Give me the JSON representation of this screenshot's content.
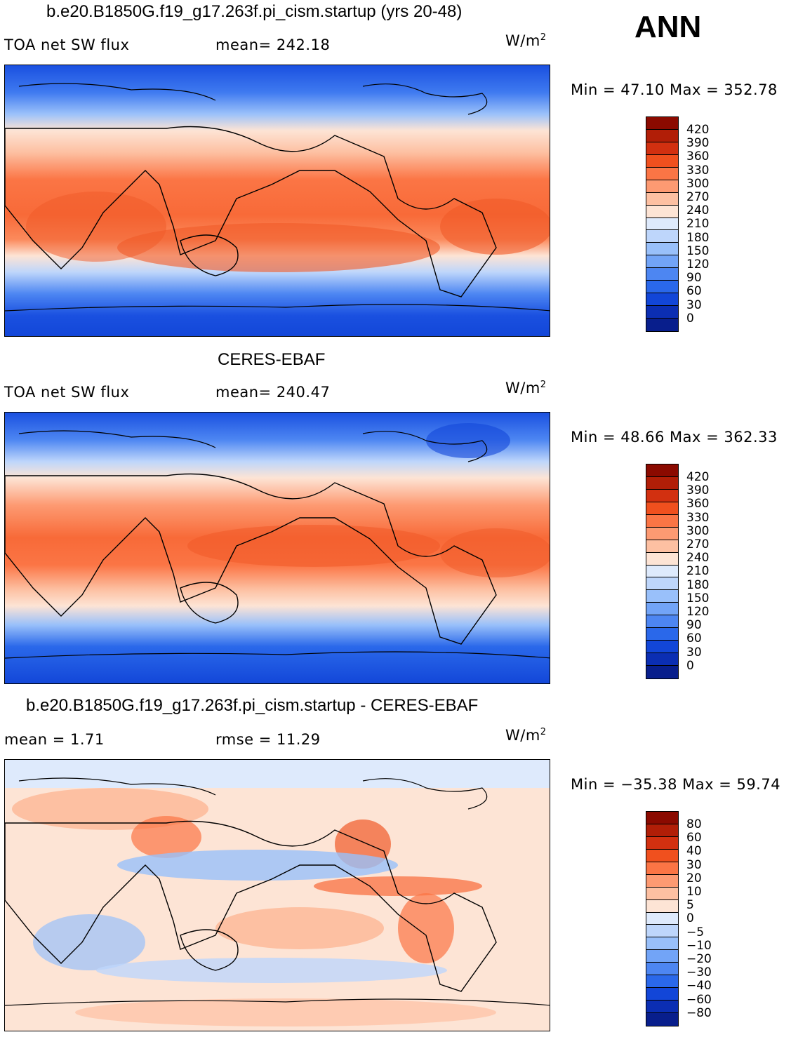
{
  "season": "ANN",
  "panels": [
    {
      "title": "b.e20.B1850G.f19_g17.263f.pi_cism.startup (yrs 20-48)",
      "left_label": "TOA net SW flux",
      "center_label": "mean= 242.18",
      "units": "W/m",
      "units_sup": "2",
      "minmax": "Min =   47.10  Max  =  352.78",
      "colorbar": {
        "colors": [
          "#8b0a00",
          "#b11e07",
          "#d23010",
          "#f0501e",
          "#fb7545",
          "#fd9a72",
          "#fdc0a2",
          "#fde4d5",
          "#deeafc",
          "#bed6fb",
          "#99c0fa",
          "#72a4f7",
          "#4d86f2",
          "#2a68ea",
          "#1246d8",
          "#0b2eb3",
          "#081e8c"
        ],
        "ticks": [
          "420",
          "390",
          "360",
          "330",
          "300",
          "270",
          "240",
          "210",
          "180",
          "150",
          "120",
          "90",
          "60",
          "30",
          "0"
        ]
      }
    },
    {
      "title": "CERES-EBAF",
      "left_label": "TOA net SW flux",
      "center_label": "mean= 240.47",
      "units": "W/m",
      "units_sup": "2",
      "minmax": "Min =   48.66  Max  =  362.33",
      "colorbar": {
        "colors": [
          "#8b0a00",
          "#b11e07",
          "#d23010",
          "#f0501e",
          "#fb7545",
          "#fd9a72",
          "#fdc0a2",
          "#fde4d5",
          "#deeafc",
          "#bed6fb",
          "#99c0fa",
          "#72a4f7",
          "#4d86f2",
          "#2a68ea",
          "#1246d8",
          "#0b2eb3",
          "#081e8c"
        ],
        "ticks": [
          "420",
          "390",
          "360",
          "330",
          "300",
          "270",
          "240",
          "210",
          "180",
          "150",
          "120",
          "90",
          "60",
          "30",
          "0"
        ]
      }
    },
    {
      "title": "b.e20.B1850G.f19_g17.263f.pi_cism.startup - CERES-EBAF",
      "left_label": "mean =     1.71",
      "center_label": "rmse  =    11.29",
      "units": "W/m",
      "units_sup": "2",
      "minmax": "Min  =  −35.38  Max  =    59.74",
      "colorbar": {
        "colors": [
          "#8b0a00",
          "#b11e07",
          "#d23010",
          "#f0501e",
          "#fb7545",
          "#fd9a72",
          "#fdc0a2",
          "#fde4d5",
          "#deeafc",
          "#bed6fb",
          "#99c0fa",
          "#72a4f7",
          "#4d86f2",
          "#2a68ea",
          "#1246d8",
          "#0b2eb3",
          "#081e8c"
        ],
        "ticks": [
          "80",
          "60",
          "40",
          "30",
          "20",
          "10",
          "5",
          "0",
          "−5",
          "−10",
          "−20",
          "−30",
          "−40",
          "−60",
          "−80"
        ]
      }
    }
  ]
}
